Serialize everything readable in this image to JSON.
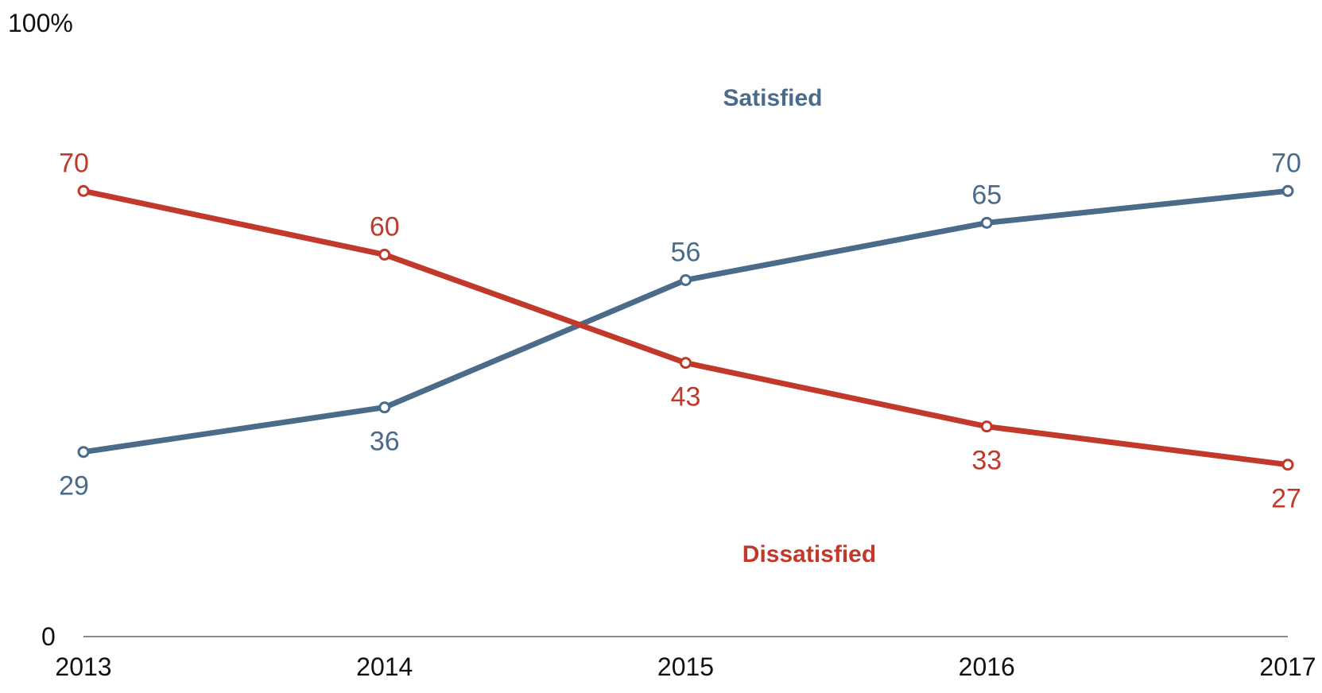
{
  "chart_data": {
    "type": "line",
    "title": "",
    "xlabel": "",
    "ylabel": "",
    "y_top_label": "100%",
    "y_bottom_label": "0",
    "ylim": [
      0,
      100
    ],
    "grid": false,
    "x": [
      "2013",
      "2014",
      "2015",
      "2016",
      "2017"
    ],
    "series": [
      {
        "name": "Satisfied",
        "color": "#4a6b8a",
        "values": [
          29,
          36,
          56,
          65,
          70
        ]
      },
      {
        "name": "Dissatisfied",
        "color": "#c0392b",
        "values": [
          70,
          60,
          43,
          33,
          27
        ]
      }
    ]
  }
}
